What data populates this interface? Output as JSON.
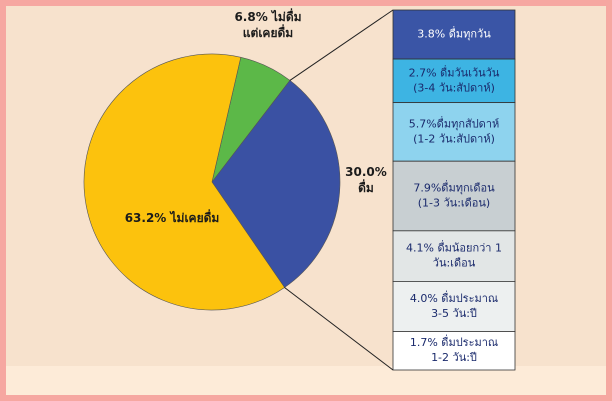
{
  "chart_data": [
    {
      "type": "pie",
      "values": [
        6.8,
        30.0,
        63.2
      ],
      "value_labels": [
        "6.8% ไม่ดื่ม\nแต่เคยดื่ม",
        "30.0%\nดื่ม",
        "63.2% ไม่เคยดื่ม"
      ],
      "colors": [
        "#5cb848",
        "#3a51a3",
        "#fcc20d"
      ]
    },
    {
      "type": "bar",
      "values": [
        3.8,
        2.7,
        5.7,
        7.9,
        4.1,
        4.0,
        1.7
      ],
      "value_labels": [
        "3.8% ดื่มทุกวัน",
        "2.7% ดื่มวันเว้นวัน\n(3-4 วัน:สัปดาห์)",
        "5.7%ดื่มทุกสัปดาห์\n(1-2 วัน:สัปดาห์)",
        "7.9%ดื่มทุกเดือน\n(1-3 วัน:เดือน)",
        "4.1% ดื่มน้อยกว่า 1\nวัน:เดือน",
        "4.0% ดื่มประมาณ\n3-5 วัน:ปี",
        "1.7% ดื่มประมาณ\n1-2 วัน:ปี"
      ],
      "colors": [
        "#3a55a6",
        "#3db4e3",
        "#8ed3ee",
        "#c8cfd2",
        "#e2e6e6",
        "#edf0f0",
        "#ffffff"
      ]
    }
  ]
}
